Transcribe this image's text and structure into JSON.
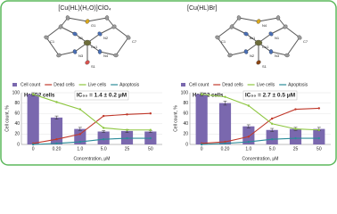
{
  "panels": [
    {
      "formula": "[Cu(HL)(H₂O)]ClO₄",
      "atoms": [
        "Cu1",
        "N1",
        "N2",
        "N3",
        "N4",
        "O1",
        "S1",
        "C1",
        "C7"
      ]
    },
    {
      "formula": "[Cu(HL)Br]",
      "atoms": [
        "Cu1",
        "Br1",
        "N1",
        "N2",
        "N3",
        "N4",
        "S1",
        "C1",
        "C7"
      ]
    }
  ],
  "chart_data": [
    {
      "type": "combo",
      "title": "HepG2 cells",
      "annotation": "IC₅₀ = 1.4 ± 0.2 μM",
      "x_label": "Concentration, μM",
      "y_label": "Cell count, %",
      "categories": [
        "0",
        "0.20",
        "1.0",
        "5.0",
        "25",
        "50"
      ],
      "ylim": [
        0,
        100
      ],
      "yticks": [
        0,
        20,
        40,
        60,
        80,
        100
      ],
      "legend": "top",
      "series": [
        {
          "name": "Cell count",
          "type": "bar",
          "color": "#7a68ae",
          "values": [
            97,
            52,
            30,
            25,
            26,
            25
          ],
          "errors": [
            3,
            3,
            3,
            2,
            3,
            2
          ]
        },
        {
          "name": "Dead cells",
          "type": "line",
          "color": "#c0392b",
          "values": [
            2,
            10,
            20,
            55,
            58,
            60
          ]
        },
        {
          "name": "Live cells",
          "type": "line",
          "color": "#8dc63f",
          "values": [
            97,
            82,
            68,
            32,
            28,
            28
          ]
        },
        {
          "name": "Apoptosis",
          "type": "line",
          "color": "#2a8c99",
          "values": [
            0,
            2,
            5,
            10,
            12,
            12
          ]
        }
      ]
    },
    {
      "type": "combo",
      "title": "HepG2 cells",
      "annotation": "IC₅₀ = 2.7 ± 0.5 μM",
      "x_label": "Concentration, μM",
      "y_label": "Cell count, %",
      "categories": [
        "0",
        "0.20",
        "1.0",
        "5.0",
        "25",
        "50"
      ],
      "ylim": [
        0,
        100
      ],
      "yticks": [
        0,
        20,
        40,
        60,
        80,
        100
      ],
      "legend": "top",
      "series": [
        {
          "name": "Cell count",
          "type": "bar",
          "color": "#7a68ae",
          "values": [
            97,
            80,
            35,
            28,
            30,
            30
          ],
          "errors": [
            3,
            4,
            3,
            3,
            3,
            3
          ]
        },
        {
          "name": "Dead cells",
          "type": "line",
          "color": "#c0392b",
          "values": [
            2,
            5,
            15,
            50,
            68,
            70
          ]
        },
        {
          "name": "Live cells",
          "type": "line",
          "color": "#8dc63f",
          "values": [
            97,
            92,
            75,
            40,
            30,
            28
          ]
        },
        {
          "name": "Apoptosis",
          "type": "line",
          "color": "#2a8c99",
          "values": [
            0,
            2,
            5,
            10,
            12,
            12
          ]
        }
      ]
    }
  ]
}
